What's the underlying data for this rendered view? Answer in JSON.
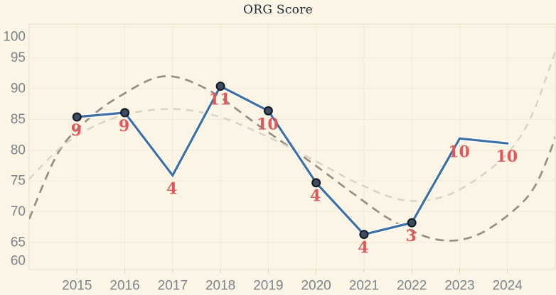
{
  "title": "ORG Score",
  "colors": {
    "background": "#fcf5e6",
    "grid": "#f2ead7",
    "border": "#e8dfc9",
    "tick": "#d6ccb6",
    "axis_text": "#7c838c",
    "title_text": "#1d2836",
    "series_line": "#3e6fa4",
    "series_casing": "#ffffff",
    "marker_fill": "#3d4e64",
    "marker_stroke": "#161c24",
    "point_label": "#e0585a",
    "trend_dark": "#948e86",
    "trend_light": "#d8d3c8"
  },
  "chart_data": {
    "type": "line",
    "title": "ORG Score",
    "xlabel": "",
    "ylabel": "",
    "x": [
      2015,
      2016,
      2017,
      2018,
      2019,
      2020,
      2021,
      2022,
      2023,
      2024
    ],
    "series": [
      {
        "name": "ORG Score",
        "values": [
          85.4,
          86.1,
          75.9,
          90.4,
          86.4,
          74.7,
          66.3,
          68.2,
          81.9,
          81.1
        ],
        "point_labels": [
          "9",
          "9",
          "4",
          "11",
          "10",
          "4",
          "4",
          "3",
          "10",
          "10"
        ],
        "markers": [
          true,
          true,
          false,
          true,
          true,
          true,
          true,
          true,
          false,
          false
        ]
      }
    ],
    "trends": [
      {
        "name": "trend-dark-dashed",
        "style": "dashed",
        "points": [
          [
            2014.0,
            68.8
          ],
          [
            2014.6,
            79.5
          ],
          [
            2015.2,
            84.8
          ],
          [
            2015.9,
            88.8
          ],
          [
            2016.8,
            92.0
          ],
          [
            2017.7,
            90.0
          ],
          [
            2018.8,
            84.0
          ],
          [
            2019.9,
            78.0
          ],
          [
            2020.8,
            72.8
          ],
          [
            2021.6,
            68.5
          ],
          [
            2022.5,
            65.5
          ],
          [
            2023.3,
            66.0
          ],
          [
            2024.1,
            70.0
          ],
          [
            2024.6,
            74.5
          ],
          [
            2025.05,
            83.0
          ]
        ]
      },
      {
        "name": "trend-light-dashed",
        "style": "dashed",
        "points": [
          [
            2014.0,
            75.3
          ],
          [
            2014.8,
            81.3
          ],
          [
            2015.8,
            85.3
          ],
          [
            2016.9,
            86.7
          ],
          [
            2017.9,
            85.6
          ],
          [
            2018.9,
            82.5
          ],
          [
            2019.9,
            78.6
          ],
          [
            2020.9,
            74.5
          ],
          [
            2021.8,
            71.9
          ],
          [
            2022.6,
            72.3
          ],
          [
            2023.3,
            75.0
          ],
          [
            2024.0,
            79.5
          ],
          [
            2024.5,
            85.5
          ],
          [
            2025.0,
            96.0
          ]
        ]
      }
    ],
    "xlim": [
      2014,
      2025
    ],
    "ylim": [
      60.6,
      100.5
    ],
    "xticks": [
      2015,
      2016,
      2017,
      2018,
      2019,
      2020,
      2021,
      2022,
      2023,
      2024
    ],
    "yticks": [
      60,
      65,
      70,
      75,
      80,
      85,
      90,
      95,
      100
    ],
    "grid": true,
    "legend": "none"
  }
}
